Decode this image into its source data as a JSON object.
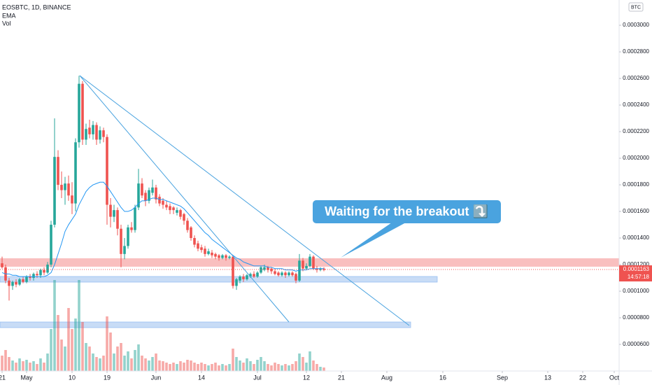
{
  "chart_data": {
    "type": "candlestick",
    "title": "EOSBTC, 1D, BINANCE",
    "currency": "BTC",
    "up_color": "#26a69a",
    "down_color": "#ef5350",
    "x": [
      0,
      1,
      2,
      3,
      4,
      5,
      6,
      7,
      8,
      9,
      10,
      11,
      12,
      13,
      14,
      15,
      16,
      17,
      18,
      19,
      20,
      21,
      22,
      23,
      24,
      25,
      26,
      27,
      28,
      29,
      30,
      31,
      32,
      33,
      34,
      35,
      36,
      37,
      38,
      39,
      40,
      41,
      42,
      43,
      44,
      45,
      46,
      47,
      48,
      49,
      50,
      51,
      52,
      53,
      54,
      55,
      56,
      57,
      58,
      59,
      60,
      61,
      62,
      63,
      64,
      65,
      66,
      67,
      68,
      69,
      70,
      71,
      72,
      73,
      74,
      75,
      76,
      77,
      78,
      79,
      80,
      81,
      82,
      83,
      84,
      85,
      86,
      87,
      88,
      89,
      90,
      91,
      92
    ],
    "ohlc": [
      [
        0.000121,
        0.000126,
        0.000117,
        0.000118
      ],
      [
        0.000118,
        0.00012,
        0.000106,
        0.000108
      ],
      [
        0.000108,
        0.00011,
        9.3e-05,
        0.000104
      ],
      [
        0.000104,
        0.000108,
        0.000101,
        0.000107
      ],
      [
        0.000107,
        0.000109,
        0.000103,
        0.000105
      ],
      [
        0.000105,
        0.00011,
        0.000104,
        0.000109
      ],
      [
        0.000109,
        0.000111,
        0.000106,
        0.000107
      ],
      [
        0.000107,
        0.000112,
        0.000106,
        0.000111
      ],
      [
        0.000111,
        0.000113,
        0.000108,
        0.00011
      ],
      [
        0.00011,
        0.000114,
        0.000108,
        0.000113
      ],
      [
        0.000113,
        0.000115,
        0.00011,
        0.000112
      ],
      [
        0.000112,
        0.000117,
        0.00011,
        0.000116
      ],
      [
        0.000116,
        0.000118,
        0.000112,
        0.000114
      ],
      [
        0.000114,
        0.000122,
        0.000113,
        0.00012
      ],
      [
        0.00012,
        0.000153,
        0.000118,
        0.00015
      ],
      [
        0.00015,
        0.00023,
        0.000148,
        0.000201
      ],
      [
        0.000201,
        0.000206,
        0.000176,
        0.00018
      ],
      [
        0.00018,
        0.00019,
        0.00017,
        0.000176
      ],
      [
        0.000176,
        0.000186,
        0.000165,
        0.000181
      ],
      [
        0.000181,
        0.000187,
        0.000168,
        0.000172
      ],
      [
        0.000172,
        0.000182,
        0.000158,
        0.000166
      ],
      [
        0.000166,
        0.000215,
        0.00016,
        0.000212
      ],
      [
        0.000212,
        0.000262,
        0.000208,
        0.000256
      ],
      [
        0.000256,
        0.000258,
        0.00021,
        0.000214
      ],
      [
        0.000214,
        0.000226,
        0.00021,
        0.000222
      ],
      [
        0.000223,
        0.000229,
        0.000215,
        0.000218
      ],
      [
        0.000218,
        0.000228,
        0.000214,
        0.000225
      ],
      [
        0.000225,
        0.000227,
        0.00021,
        0.000214
      ],
      [
        0.000214,
        0.000224,
        0.000211,
        0.000221
      ],
      [
        0.000221,
        0.000223,
        0.000212,
        0.000216
      ],
      [
        0.000216,
        0.000218,
        0.00015,
        0.000165
      ],
      [
        0.000165,
        0.00017,
        0.000148,
        0.000156
      ],
      [
        0.000156,
        0.000165,
        0.000152,
        0.000161
      ],
      [
        0.000161,
        0.000163,
        0.000142,
        0.000147
      ],
      [
        0.000147,
        0.00015,
        0.000118,
        0.000128
      ],
      [
        0.000128,
        0.00014,
        0.000124,
        0.000134
      ],
      [
        0.000134,
        0.00015,
        0.000132,
        0.000148
      ],
      [
        0.000148,
        0.000152,
        0.000144,
        0.000146
      ],
      [
        0.000146,
        0.000165,
        0.000144,
        0.000163
      ],
      [
        0.000163,
        0.000192,
        0.000161,
        0.000181
      ],
      [
        0.000181,
        0.000185,
        0.00017,
        0.000172
      ],
      [
        0.000174,
        0.000176,
        0.000164,
        0.000168
      ],
      [
        0.000168,
        0.000178,
        0.000166,
        0.000176
      ],
      [
        0.000174,
        0.000184,
        0.000172,
        0.000178
      ],
      [
        0.000178,
        0.00018,
        0.000166,
        0.000169
      ],
      [
        0.000171,
        0.000173,
        0.000164,
        0.000166
      ],
      [
        0.000168,
        0.00017,
        0.000162,
        0.000165
      ],
      [
        0.000165,
        0.000168,
        0.000161,
        0.000163
      ],
      [
        0.000164,
        0.000166,
        0.000158,
        0.000161
      ],
      [
        0.000163,
        0.000164,
        0.000158,
        0.000161
      ],
      [
        0.000159,
        0.000163,
        0.000157,
        0.000161
      ],
      [
        0.000161,
        0.000162,
        0.000154,
        0.000156
      ],
      [
        0.000158,
        0.000159,
        0.00015,
        0.000153
      ],
      [
        0.000153,
        0.000155,
        0.000144,
        0.000146
      ],
      [
        0.000148,
        0.000149,
        0.000138,
        0.00014
      ],
      [
        0.00014,
        0.000142,
        0.000133,
        0.000135
      ],
      [
        0.000136,
        0.000138,
        0.00013,
        0.000132
      ],
      [
        0.000133,
        0.000135,
        0.000129,
        0.000131
      ],
      [
        0.000132,
        0.000134,
        0.000126,
        0.000128
      ],
      [
        0.000128,
        0.000132,
        0.000127,
        0.00013
      ],
      [
        0.000129,
        0.000131,
        0.000125,
        0.000127
      ],
      [
        0.000128,
        0.000129,
        0.000124,
        0.000126
      ],
      [
        0.000127,
        0.000128,
        0.000123,
        0.000125
      ],
      [
        0.000125,
        0.000128,
        0.000124,
        0.000127
      ],
      [
        0.000127,
        0.000128,
        0.000123,
        0.000125
      ],
      [
        0.000125,
        0.000127,
        0.000124,
        0.000126
      ],
      [
        0.000126,
        0.000127,
        0.000102,
        0.000104
      ],
      [
        0.000104,
        0.00011,
        0.000101,
        0.000109
      ],
      [
        0.000108,
        0.000112,
        0.000106,
        0.000111
      ],
      [
        0.000111,
        0.000113,
        0.000107,
        0.000109
      ],
      [
        0.000109,
        0.000113,
        0.000108,
        0.000112
      ],
      [
        0.000111,
        0.000114,
        0.00011,
        0.000113
      ],
      [
        0.000113,
        0.000115,
        0.00011,
        0.000111
      ],
      [
        0.000111,
        0.000115,
        0.00011,
        0.000114
      ],
      [
        0.000114,
        0.000119,
        0.000113,
        0.000118
      ],
      [
        0.000116,
        0.00012,
        0.000115,
        0.000118
      ],
      [
        0.000118,
        0.000119,
        0.000114,
        0.000116
      ],
      [
        0.000117,
        0.000118,
        0.000113,
        0.000115
      ],
      [
        0.000115,
        0.000117,
        0.000112,
        0.000113
      ],
      [
        0.000114,
        0.000115,
        0.000111,
        0.000112
      ],
      [
        0.000112,
        0.000115,
        0.000111,
        0.000114
      ],
      [
        0.000114,
        0.000115,
        0.00011,
        0.000112
      ],
      [
        0.000112,
        0.000115,
        0.000111,
        0.000114
      ],
      [
        0.000114,
        0.000115,
        0.000111,
        0.000112
      ],
      [
        0.000113,
        0.000114,
        0.000106,
        0.000108
      ],
      [
        0.000108,
        0.000128,
        0.000107,
        0.000123
      ],
      [
        0.000123,
        0.000125,
        0.000115,
        0.000117
      ],
      [
        0.000117,
        0.000121,
        0.000116,
        0.000119
      ],
      [
        0.000119,
        0.000128,
        0.000118,
        0.000126
      ],
      [
        0.000126,
        0.000127,
        0.000116,
        0.000117
      ],
      [
        0.000117,
        0.000119,
        0.000114,
        0.000116
      ],
      [
        0.000116,
        0.000118,
        0.000115,
        0.000117
      ],
      [
        0.000117,
        0.000118,
        0.000115,
        0.000116
      ]
    ],
    "series": [
      {
        "name": "EMA",
        "color": "#2196f3",
        "values": [
          0.000114,
          0.000113,
          0.000113,
          0.000112,
          0.000112,
          0.000111,
          0.000111,
          0.000111,
          0.000111,
          0.000111,
          0.000111,
          0.000111,
          0.000111,
          0.000112,
          0.000114,
          0.00012,
          0.000128,
          0.000136,
          0.000145,
          0.00015,
          0.000154,
          0.000158,
          0.000165,
          0.00017,
          0.000175,
          0.000178,
          0.00018,
          0.000181,
          0.000182,
          0.000182,
          0.000179,
          0.000175,
          0.000171,
          0.000167,
          0.000163,
          0.00016,
          0.00016,
          0.000161,
          0.000163,
          0.000166,
          0.000168,
          0.000168,
          0.000169,
          0.00017,
          0.00017,
          0.000169,
          0.000169,
          0.000168,
          0.000167,
          0.000166,
          0.000165,
          0.000164,
          0.000162,
          0.000159,
          0.000156,
          0.000153,
          0.00015,
          0.000147,
          0.000144,
          0.000142,
          0.000139,
          0.000137,
          0.000135,
          0.000133,
          0.000131,
          0.000129,
          0.000127,
          0.000125,
          0.000124,
          0.000122,
          0.000121,
          0.00012,
          0.000119,
          0.000119,
          0.000119,
          0.000119,
          0.000118,
          0.000118,
          0.000117,
          0.000117,
          0.000117,
          0.000116,
          0.000116,
          0.000116,
          0.000115,
          0.000116,
          0.000116,
          0.000116,
          0.000117,
          0.000117,
          0.000117,
          0.000117,
          0.000117
        ]
      },
      {
        "name": "Vol",
        "values": [
          22,
          30,
          20,
          15,
          12,
          18,
          14,
          16,
          12,
          14,
          10,
          18,
          12,
          25,
          60,
          130,
          80,
          45,
          35,
          90,
          60,
          75,
          130,
          70,
          40,
          35,
          25,
          20,
          18,
          22,
          78,
          55,
          25,
          35,
          40,
          22,
          28,
          18,
          30,
          38,
          22,
          18,
          15,
          20,
          25,
          15,
          14,
          12,
          10,
          12,
          10,
          14,
          12,
          16,
          15,
          12,
          10,
          12,
          10,
          8,
          10,
          12,
          8,
          10,
          8,
          10,
          32,
          20,
          15,
          12,
          18,
          14,
          10,
          16,
          20,
          14,
          10,
          8,
          12,
          10,
          8,
          10,
          8,
          10,
          14,
          25,
          20,
          12,
          28,
          15,
          10,
          6,
          5
        ]
      }
    ],
    "last_price": 0.0001163,
    "countdown": "14:57:18",
    "annotation": "Waiting for the breakout ⤵️",
    "xlim": [
      -0.6,
      176.4
    ],
    "xticks": [
      {
        "value": 0,
        "label": "21"
      },
      {
        "value": 7,
        "label": "May"
      },
      {
        "value": 20,
        "label": "10"
      },
      {
        "value": 30,
        "label": "19"
      },
      {
        "value": 44,
        "label": "Jun"
      },
      {
        "value": 57,
        "label": "14"
      },
      {
        "value": 73,
        "label": "Jul"
      },
      {
        "value": 87,
        "label": "12"
      },
      {
        "value": 97,
        "label": "21"
      },
      {
        "value": 110,
        "label": "Aug"
      },
      {
        "value": 126,
        "label": "16"
      },
      {
        "value": 143,
        "label": "Sep"
      },
      {
        "value": 156,
        "label": "13"
      },
      {
        "value": 166,
        "label": "22"
      },
      {
        "value": 175,
        "label": "Oct"
      }
    ],
    "ylim": [
      4e-05,
      0.000319
    ],
    "yticks": [
      {
        "value": 6e-05,
        "label": "0.0000600"
      },
      {
        "value": 8e-05,
        "label": "0.0000800"
      },
      {
        "value": 0.0001,
        "label": "0.0001000"
      },
      {
        "value": 0.00012,
        "label": "0.0001200"
      },
      {
        "value": 0.00014,
        "label": "0.0001400"
      },
      {
        "value": 0.00016,
        "label": "0.0001600"
      },
      {
        "value": 0.00018,
        "label": "0.0001800"
      },
      {
        "value": 0.0002,
        "label": "0.0002000"
      },
      {
        "value": 0.00022,
        "label": "0.0002200"
      },
      {
        "value": 0.00024,
        "label": "0.0002400"
      },
      {
        "value": 0.00026,
        "label": "0.0002600"
      },
      {
        "value": 0.00028,
        "label": "0.0002800"
      },
      {
        "value": 0.0003,
        "label": "0.0003000"
      }
    ],
    "grid": false
  }
}
